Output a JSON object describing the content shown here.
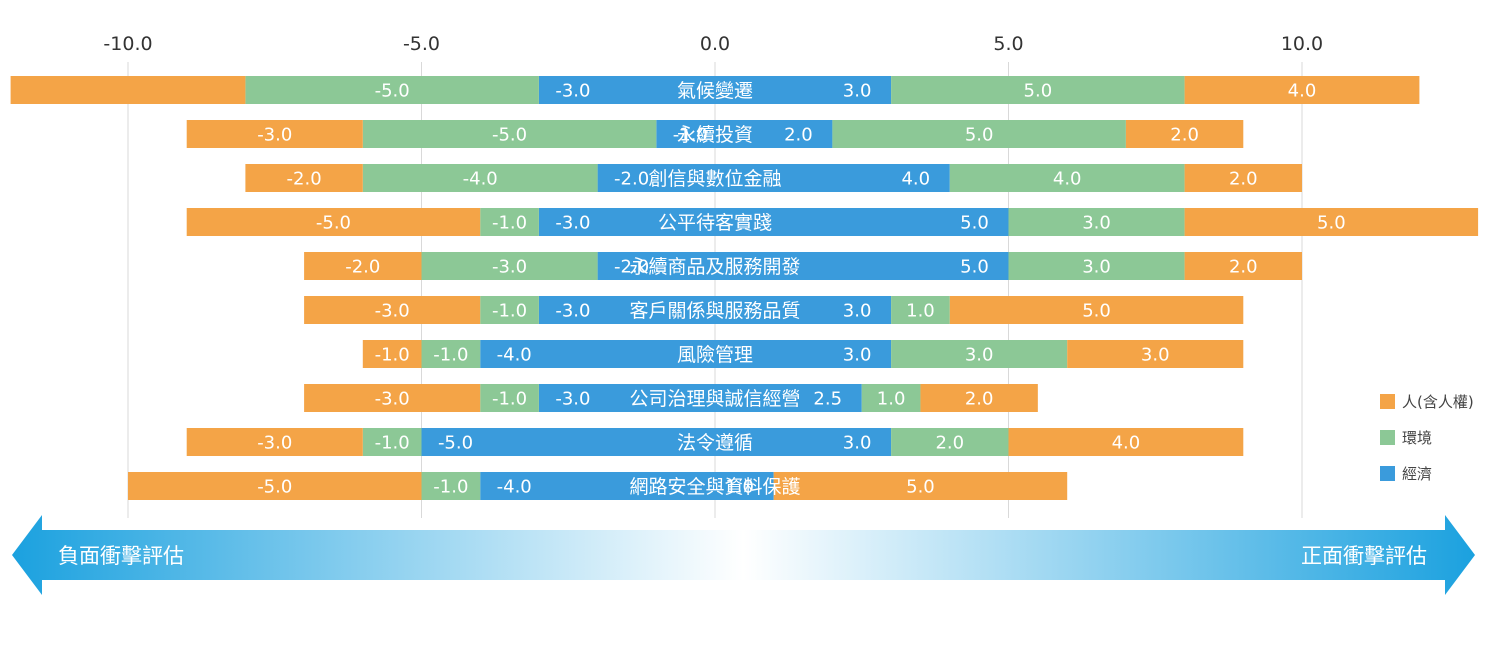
{
  "chart_data": {
    "type": "bar",
    "stacking": "diverging-stacked",
    "orientation": "horizontal",
    "x_ticks": [
      -10,
      -5,
      0,
      5,
      10
    ],
    "x_tick_labels": [
      "-10.0",
      "-5.0",
      "0.0",
      "5.0",
      "10.0"
    ],
    "xlim": [
      -12,
      13
    ],
    "grid": true,
    "categories": [
      "氣候變遷",
      "永續投資",
      "創信與數位金融",
      "公平待客實踐",
      "永續商品及服務開發",
      "客戶關係與服務品質",
      "風險管理",
      "公司治理與誠信經營",
      "法令遵循",
      "網路安全與資料保護"
    ],
    "series": [
      {
        "name": "經濟",
        "color": "#3a9bdc",
        "negative": [
          -3.0,
          -1.0,
          -2.0,
          -3.0,
          -2.0,
          -3.0,
          -4.0,
          -3.0,
          -5.0,
          -4.0
        ],
        "negative_labels": [
          "-3.0",
          "-1.0",
          "-2.0",
          "-3.0",
          "-2.0",
          "-3.0",
          "-4.0",
          "-3.0",
          "-5.0",
          "-4.0"
        ],
        "positive": [
          3.0,
          2.0,
          4.0,
          5.0,
          5.0,
          3.0,
          3.0,
          2.5,
          3.0,
          1.0
        ],
        "positive_labels": [
          "3.0",
          "2.0",
          "4.0",
          "5.0",
          "5.0",
          "3.0",
          "3.0",
          "2.5",
          "3.0",
          "1.0"
        ]
      },
      {
        "name": "環境",
        "color": "#8cc896",
        "negative": [
          -5.0,
          -5.0,
          -4.0,
          -1.0,
          -3.0,
          -1.0,
          -1.0,
          -1.0,
          -1.0,
          -1.0
        ],
        "negative_labels": [
          "-5.0",
          "-5.0",
          "-4.0",
          "-1.0",
          "-3.0",
          "-1.0",
          "-1.0",
          "-1.0",
          "-1.0",
          "-1.0"
        ],
        "positive": [
          5.0,
          5.0,
          4.0,
          3.0,
          3.0,
          1.0,
          3.0,
          1.0,
          2.0,
          0
        ],
        "positive_labels": [
          "5.0",
          "5.0",
          "4.0",
          "3.0",
          "3.0",
          "1.0",
          "3.0",
          "1.0",
          "2.0",
          ""
        ]
      },
      {
        "name": "人(含人權)",
        "color": "#f4a447",
        "negative": [
          -4.0,
          -3.0,
          -2.0,
          -5.0,
          -2.0,
          -3.0,
          -1.0,
          -3.0,
          -3.0,
          -5.0
        ],
        "negative_labels": [
          "",
          "-3.0",
          "-2.0",
          "-5.0",
          "-2.0",
          "-3.0",
          "-1.0",
          "-3.0",
          "-3.0",
          "-5.0"
        ],
        "positive": [
          4.0,
          2.0,
          2.0,
          5.0,
          2.0,
          5.0,
          3.0,
          2.0,
          4.0,
          5.0
        ],
        "positive_labels": [
          "4.0",
          "2.0",
          "2.0",
          "5.0",
          "2.0",
          "5.0",
          "3.0",
          "2.0",
          "4.0",
          "5.0"
        ]
      }
    ],
    "legend": {
      "placement": "right",
      "entries": [
        {
          "name": "人(含人權)",
          "color": "#f4a447"
        },
        {
          "name": "環境",
          "color": "#8cc896"
        },
        {
          "name": "經濟",
          "color": "#3a9bdc"
        }
      ]
    }
  },
  "impact_scale": {
    "negative_label": "負面衝擊評估",
    "positive_label": "正面衝擊評估",
    "color": "#1ba1df"
  }
}
